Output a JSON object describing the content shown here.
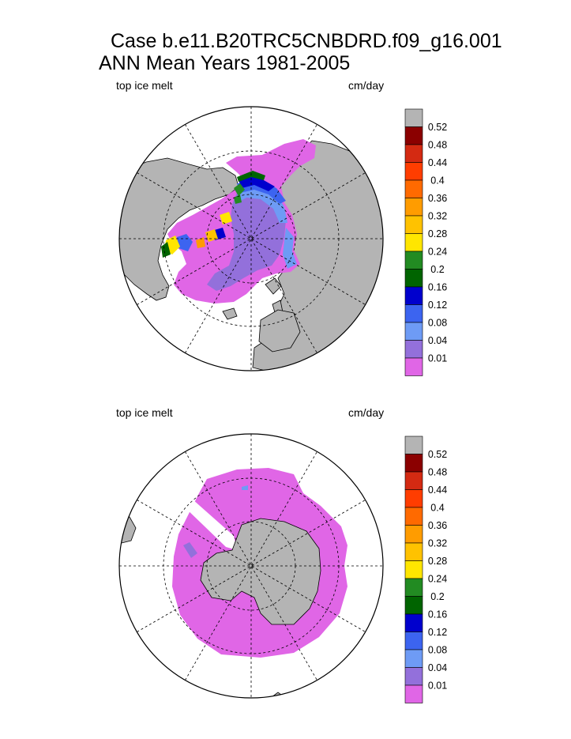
{
  "title": {
    "line1": "Case b.e11.B20TRC5CNBDRD.f09_g16.001",
    "line2": "ANN Mean    Years 1981-2005"
  },
  "panels": [
    {
      "id": "north",
      "variable_label": "top ice melt",
      "units_label": "cm/day"
    },
    {
      "id": "south",
      "variable_label": "top ice melt",
      "units_label": "cm/day"
    }
  ],
  "colorbar": {
    "land_color": "#b4b4b4",
    "levels": [
      "0.52",
      "0.48",
      "0.44",
      "0.4",
      "0.36",
      "0.32",
      "0.28",
      "0.24",
      "0.2",
      "0.16",
      "0.12",
      "0.08",
      "0.04",
      "0.01"
    ],
    "colors": [
      "#b4b4b4",
      "#8b0000",
      "#d42a12",
      "#ff3d00",
      "#ff6a00",
      "#ff9c00",
      "#ffc200",
      "#ffe600",
      "#228b22",
      "#006400",
      "#0000cd",
      "#3c64f0",
      "#6e9bf5",
      "#9370db",
      "#e066e6"
    ]
  },
  "chart_data": [
    {
      "type": "heatmap",
      "projection": "north polar stereographic",
      "variable": "top ice melt",
      "units": "cm/day",
      "contour_levels": [
        0.01,
        0.04,
        0.08,
        0.12,
        0.16,
        0.2,
        0.24,
        0.28,
        0.32,
        0.36,
        0.4,
        0.44,
        0.48,
        0.52
      ],
      "ocean_color": "#ffffff",
      "land_color": "#b4b4b4",
      "grid": true
    },
    {
      "type": "heatmap",
      "projection": "south polar stereographic",
      "variable": "top ice melt",
      "units": "cm/day",
      "contour_levels": [
        0.01,
        0.04,
        0.08,
        0.12,
        0.16,
        0.2,
        0.24,
        0.28,
        0.32,
        0.36,
        0.4,
        0.44,
        0.48,
        0.52
      ],
      "ocean_color": "#ffffff",
      "land_color": "#b4b4b4",
      "grid": true
    }
  ]
}
